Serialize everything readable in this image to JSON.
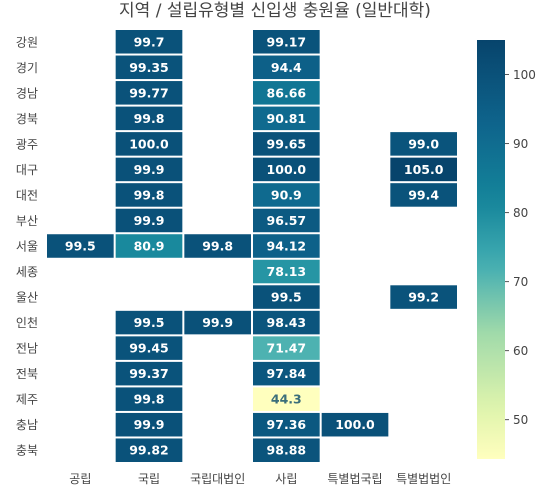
{
  "chart_data": {
    "type": "heatmap",
    "title": "지역 / 설립유형별 신입생 충원율 (일반대학)",
    "x_categories": [
      "공립",
      "국립",
      "국립대법인",
      "사립",
      "특별법국립",
      "특별법법인"
    ],
    "y_categories": [
      "강원",
      "경기",
      "경남",
      "경북",
      "광주",
      "대구",
      "대전",
      "부산",
      "서울",
      "세종",
      "울산",
      "인천",
      "전남",
      "전북",
      "제주",
      "충남",
      "충북"
    ],
    "values": [
      [
        null,
        99.7,
        null,
        99.17,
        null,
        null
      ],
      [
        null,
        99.35,
        null,
        94.4,
        null,
        null
      ],
      [
        null,
        99.77,
        null,
        86.66,
        null,
        null
      ],
      [
        null,
        99.8,
        null,
        90.81,
        null,
        null
      ],
      [
        null,
        100.0,
        null,
        99.65,
        null,
        99.0
      ],
      [
        null,
        99.9,
        null,
        100.0,
        null,
        105.0
      ],
      [
        null,
        99.8,
        null,
        90.9,
        null,
        99.4
      ],
      [
        null,
        99.9,
        null,
        96.57,
        null,
        null
      ],
      [
        99.5,
        80.9,
        99.8,
        94.12,
        null,
        null
      ],
      [
        null,
        null,
        null,
        78.13,
        null,
        null
      ],
      [
        null,
        null,
        null,
        99.5,
        null,
        99.2
      ],
      [
        null,
        99.5,
        99.9,
        98.43,
        null,
        null
      ],
      [
        null,
        99.45,
        null,
        71.47,
        null,
        null
      ],
      [
        null,
        99.37,
        null,
        97.84,
        null,
        null
      ],
      [
        null,
        99.8,
        null,
        44.3,
        null,
        null
      ],
      [
        null,
        99.9,
        null,
        97.36,
        100.0,
        null
      ],
      [
        null,
        99.82,
        null,
        98.88,
        null,
        null
      ]
    ],
    "labels": [
      [
        null,
        "99.7",
        null,
        "99.17",
        null,
        null
      ],
      [
        null,
        "99.35",
        null,
        "94.4",
        null,
        null
      ],
      [
        null,
        "99.77",
        null,
        "86.66",
        null,
        null
      ],
      [
        null,
        "99.8",
        null,
        "90.81",
        null,
        null
      ],
      [
        null,
        "100.0",
        null,
        "99.65",
        null,
        "99.0"
      ],
      [
        null,
        "99.9",
        null,
        "100.0",
        null,
        "105.0"
      ],
      [
        null,
        "99.8",
        null,
        "90.9",
        null,
        "99.4"
      ],
      [
        null,
        "99.9",
        null,
        "96.57",
        null,
        null
      ],
      [
        "99.5",
        "80.9",
        "99.8",
        "94.12",
        null,
        null
      ],
      [
        null,
        null,
        null,
        "78.13",
        null,
        null
      ],
      [
        null,
        null,
        null,
        "99.5",
        null,
        "99.2"
      ],
      [
        null,
        "99.5",
        "99.9",
        "98.43",
        null,
        null
      ],
      [
        null,
        "99.45",
        null,
        "71.47",
        null,
        null
      ],
      [
        null,
        "99.37",
        null,
        "97.84",
        null,
        null
      ],
      [
        null,
        "99.8",
        null,
        "44.3",
        null,
        null
      ],
      [
        null,
        "99.9",
        null,
        "97.36",
        "100.0",
        null
      ],
      [
        null,
        "99.82",
        null,
        "98.88",
        null,
        null
      ]
    ],
    "color_range": [
      44.3,
      105.0
    ],
    "colorbar_ticks": [
      "50",
      "60",
      "70",
      "80",
      "90",
      "100"
    ],
    "colorscale": "YlGnBu"
  }
}
